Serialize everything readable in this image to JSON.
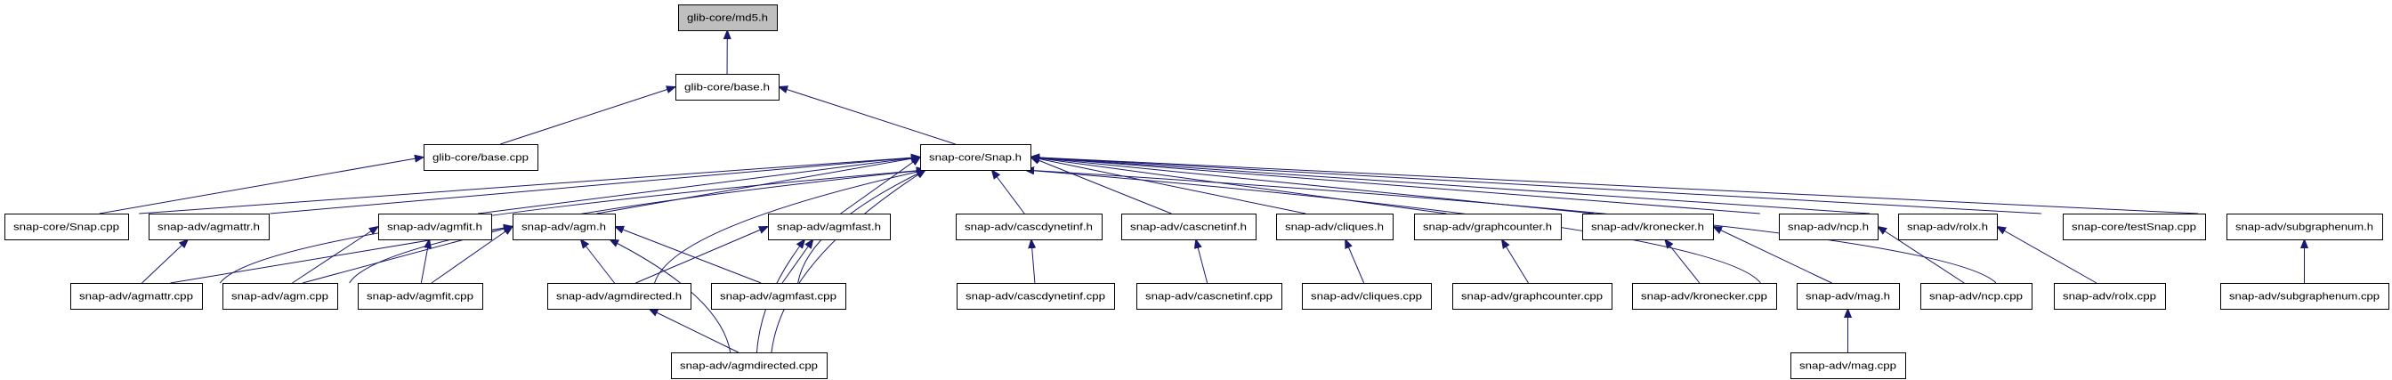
{
  "graph": {
    "type": "include-dependency-graph",
    "edge_color": "#191970",
    "root_fill": "#bfbfbf",
    "nodes": [
      {
        "id": "md5h",
        "label": "glib-core/md5.h",
        "root": true
      },
      {
        "id": "baseh",
        "label": "glib-core/base.h"
      },
      {
        "id": "basecpp",
        "label": "glib-core/base.cpp"
      },
      {
        "id": "snaph",
        "label": "snap-core/Snap.h"
      },
      {
        "id": "snapcpp",
        "label": "snap-core/Snap.cpp"
      },
      {
        "id": "agmattrh",
        "label": "snap-adv/agmattr.h"
      },
      {
        "id": "agmfith",
        "label": "snap-adv/agmfit.h"
      },
      {
        "id": "agmh",
        "label": "snap-adv/agm.h"
      },
      {
        "id": "agmfasth",
        "label": "snap-adv/agmfast.h"
      },
      {
        "id": "cascdynh",
        "label": "snap-adv/cascdynetinf.h"
      },
      {
        "id": "cascneth",
        "label": "snap-adv/cascnetinf.h"
      },
      {
        "id": "cliquesh",
        "label": "snap-adv/cliques.h"
      },
      {
        "id": "graphch",
        "label": "snap-adv/graphcounter.h"
      },
      {
        "id": "kronh",
        "label": "snap-adv/kronecker.h"
      },
      {
        "id": "ncph",
        "label": "snap-adv/ncp.h"
      },
      {
        "id": "rolxh",
        "label": "snap-adv/rolx.h"
      },
      {
        "id": "testsnap",
        "label": "snap-core/testSnap.cpp"
      },
      {
        "id": "subgh",
        "label": "snap-adv/subgraphenum.h"
      },
      {
        "id": "agmattrcpp",
        "label": "snap-adv/agmattr.cpp"
      },
      {
        "id": "agmcpp",
        "label": "snap-adv/agm.cpp"
      },
      {
        "id": "agmfitcpp",
        "label": "snap-adv/agmfit.cpp"
      },
      {
        "id": "agmdirh",
        "label": "snap-adv/agmdirected.h"
      },
      {
        "id": "agmfastcpp",
        "label": "snap-adv/agmfast.cpp"
      },
      {
        "id": "cascdyncpp",
        "label": "snap-adv/cascdynetinf.cpp"
      },
      {
        "id": "cascnetcpp",
        "label": "snap-adv/cascnetinf.cpp"
      },
      {
        "id": "cliquescpp",
        "label": "snap-adv/cliques.cpp"
      },
      {
        "id": "graphccpp",
        "label": "snap-adv/graphcounter.cpp"
      },
      {
        "id": "kroncpp",
        "label": "snap-adv/kronecker.cpp"
      },
      {
        "id": "magh",
        "label": "snap-adv/mag.h"
      },
      {
        "id": "ncpcpp",
        "label": "snap-adv/ncp.cpp"
      },
      {
        "id": "rolxcpp",
        "label": "snap-adv/rolx.cpp"
      },
      {
        "id": "subgcpp",
        "label": "snap-adv/subgraphenum.cpp"
      },
      {
        "id": "agmdircpp",
        "label": "snap-adv/agmdirected.cpp"
      },
      {
        "id": "magcpp",
        "label": "snap-adv/mag.cpp"
      }
    ],
    "edges": [
      [
        "baseh",
        "md5h"
      ],
      [
        "basecpp",
        "baseh"
      ],
      [
        "snaph",
        "baseh"
      ],
      [
        "snapcpp",
        "basecpp"
      ],
      [
        "snapcpp",
        "snaph"
      ],
      [
        "agmattrh",
        "snaph"
      ],
      [
        "agmfith",
        "snaph"
      ],
      [
        "agmh",
        "snaph"
      ],
      [
        "agmfasth",
        "snaph"
      ],
      [
        "cascdynh",
        "snaph"
      ],
      [
        "cascneth",
        "snaph"
      ],
      [
        "cliquesh",
        "snaph"
      ],
      [
        "graphch",
        "snaph"
      ],
      [
        "kronh",
        "snaph"
      ],
      [
        "ncph",
        "snaph"
      ],
      [
        "rolxh",
        "snaph"
      ],
      [
        "testsnap",
        "snaph"
      ],
      [
        "subgh",
        "snaph"
      ],
      [
        "agmattrcpp",
        "agmattrh"
      ],
      [
        "agmattrcpp",
        "agmh"
      ],
      [
        "agmattrcpp",
        "snaph"
      ],
      [
        "agmcpp",
        "agmfith"
      ],
      [
        "agmcpp",
        "agmh"
      ],
      [
        "agmcpp",
        "snaph"
      ],
      [
        "agmfitcpp",
        "agmfith"
      ],
      [
        "agmfitcpp",
        "agmh"
      ],
      [
        "agmdirh",
        "agmh"
      ],
      [
        "agmdirh",
        "agmfasth"
      ],
      [
        "agmdirh",
        "snaph"
      ],
      [
        "agmfastcpp",
        "agmh"
      ],
      [
        "agmfastcpp",
        "agmfasth"
      ],
      [
        "agmfastcpp",
        "snaph"
      ],
      [
        "agmdircpp",
        "agmdirh"
      ],
      [
        "agmdircpp",
        "agmh"
      ],
      [
        "agmdircpp",
        "agmfasth"
      ],
      [
        "agmdircpp",
        "snaph"
      ],
      [
        "cascdyncpp",
        "cascdynh"
      ],
      [
        "cascnetcpp",
        "cascneth"
      ],
      [
        "cliquescpp",
        "cliquesh"
      ],
      [
        "graphccpp",
        "graphch"
      ],
      [
        "kroncpp",
        "kronh"
      ],
      [
        "magh",
        "kronh"
      ],
      [
        "magh",
        "snaph"
      ],
      [
        "ncpcpp",
        "ncph"
      ],
      [
        "rolxcpp",
        "rolxh"
      ],
      [
        "rolxcpp",
        "snaph"
      ],
      [
        "subgcpp",
        "subgh"
      ],
      [
        "magcpp",
        "magh"
      ]
    ]
  }
}
